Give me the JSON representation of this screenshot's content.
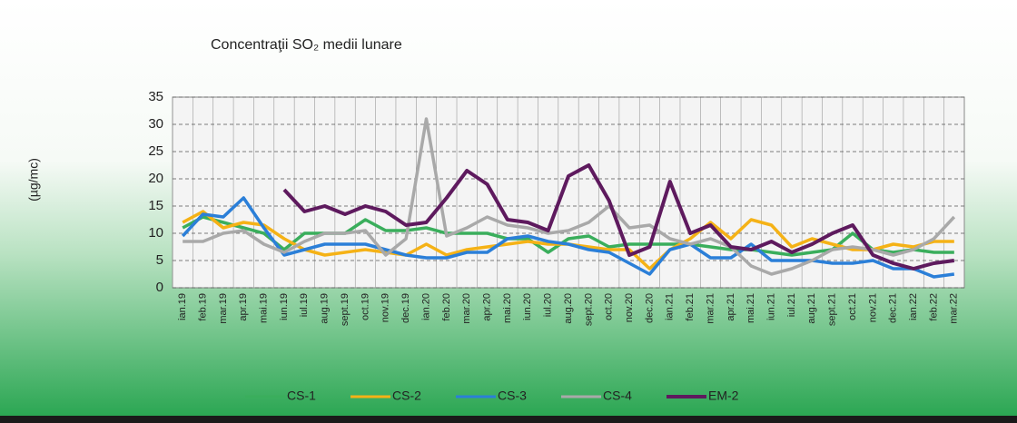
{
  "chart_data": {
    "type": "line",
    "title": "Concentraţii SO₂ medii lunare",
    "y_label": "(µg/mc)",
    "categories": [
      "ian.19",
      "feb.19",
      "mar.19",
      "apr.19",
      "mai.19",
      "iun.19",
      "iul.19",
      "aug.19",
      "sept.19",
      "oct.19",
      "nov.19",
      "dec.19",
      "ian.20",
      "feb.20",
      "mar.20",
      "apr.20",
      "mai.20",
      "iun.20",
      "iul.20",
      "aug.20",
      "sept.20",
      "oct.20",
      "nov.20",
      "dec.20",
      "ian.21",
      "feb.21",
      "mar.21",
      "apr.21",
      "mai.21",
      "iun.21",
      "iul.21",
      "aug.21",
      "sept.21",
      "oct.21",
      "nov.21",
      "dec.21",
      "ian.22",
      "feb.22",
      "mar.22"
    ],
    "series": [
      {
        "name": "CS-1",
        "color": "#3aae5c",
        "values": [
          11,
          13,
          12,
          11,
          10,
          7,
          10,
          10,
          10,
          12.5,
          10.5,
          10.5,
          11,
          10,
          10,
          10,
          9,
          9,
          6.5,
          9,
          9.5,
          7.5,
          8,
          8,
          8,
          8,
          7.5,
          7,
          7,
          6.5,
          6,
          6.5,
          7,
          10,
          7,
          6.5,
          7,
          6.5,
          6.5
        ]
      },
      {
        "name": "CS-2",
        "color": "#f5b216",
        "values": [
          12,
          14,
          11,
          12,
          11.5,
          9,
          7,
          6,
          6.5,
          7,
          6.5,
          6,
          8,
          6,
          7,
          7.5,
          8,
          8.5,
          8,
          8,
          7.5,
          7,
          7,
          3.5,
          7,
          9,
          12,
          9,
          12.5,
          11.5,
          7.5,
          9,
          8,
          7,
          7,
          8,
          7.5,
          8.5,
          8.5
        ]
      },
      {
        "name": "CS-3",
        "color": "#2b7fd8",
        "values": [
          9.5,
          13.5,
          13,
          16.5,
          11,
          6,
          7,
          8,
          8,
          8,
          7,
          6,
          5.5,
          5.5,
          6.5,
          6.5,
          9,
          9.5,
          8.5,
          8,
          7,
          6.5,
          4.5,
          2.5,
          7,
          8,
          5.5,
          5.5,
          8,
          5,
          5,
          5,
          4.5,
          4.5,
          5,
          3.5,
          3.5,
          2,
          2.5
        ]
      },
      {
        "name": "CS-4",
        "color": "#a9a9a9",
        "values": [
          8.5,
          8.5,
          10,
          10.5,
          8,
          6.5,
          8.5,
          10,
          10,
          10.5,
          6,
          9,
          31,
          9.5,
          11,
          13,
          11.5,
          11,
          10,
          10.5,
          12,
          15,
          11,
          11.5,
          9,
          8,
          9,
          7.5,
          4,
          2.5,
          3.5,
          5,
          7,
          7.5,
          7,
          6,
          7,
          9,
          13
        ]
      },
      {
        "name": "EM-2",
        "color": "#5e1a5e",
        "values": [
          null,
          null,
          null,
          null,
          null,
          18,
          14,
          15,
          13.5,
          15,
          14,
          11.5,
          12,
          16.5,
          21.5,
          19,
          12.5,
          12,
          10.5,
          20.5,
          22.5,
          16,
          6,
          7.5,
          19.5,
          10,
          11.5,
          7.5,
          7,
          8.5,
          6.5,
          8,
          10,
          11.5,
          6,
          4.5,
          3.5,
          4.5,
          5
        ]
      }
    ],
    "ylim": [
      0,
      35
    ],
    "yticks": [
      0,
      5,
      10,
      15,
      20,
      25,
      30,
      35
    ],
    "grid": true,
    "legend": "bottom"
  }
}
